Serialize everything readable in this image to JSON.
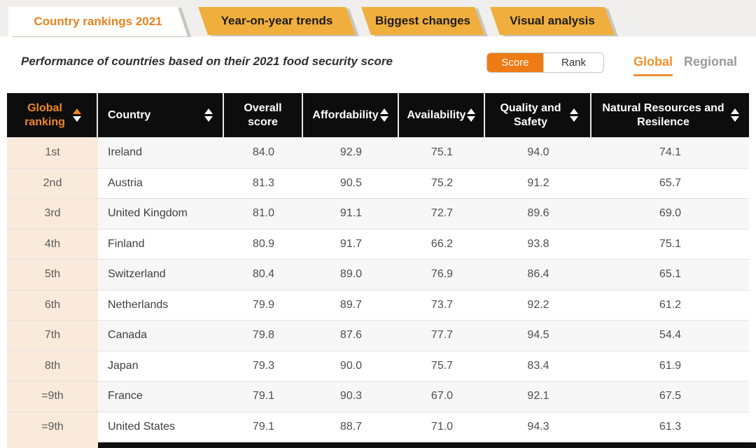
{
  "tabs": [
    {
      "label": "Country rankings 2021",
      "active": true
    },
    {
      "label": "Year-on-year trends",
      "active": false
    },
    {
      "label": "Biggest changes",
      "active": false
    },
    {
      "label": "Visual analysis",
      "active": false
    }
  ],
  "subtitle": "Performance of countries based on their 2021 food security score",
  "view_toggle": {
    "score_label": "Score",
    "rank_label": "Rank",
    "selected": "Score"
  },
  "scope_toggle": {
    "global_label": "Global",
    "regional_label": "Regional",
    "selected": "Global"
  },
  "table": {
    "columns": [
      {
        "label": "Global ranking",
        "sortable": true,
        "sort_state": "asc-active"
      },
      {
        "label": "Country",
        "sortable": true
      },
      {
        "label": "Overall score",
        "sortable": false
      },
      {
        "label": "Affordability",
        "sortable": true
      },
      {
        "label": "Availability",
        "sortable": true
      },
      {
        "label": "Quality and Safety",
        "sortable": true
      },
      {
        "label": "Natural Resources and Resilence",
        "sortable": true
      }
    ],
    "rows": [
      {
        "rank": "1st",
        "country": "Ireland",
        "overall": "84.0",
        "affordability": "92.9",
        "availability": "75.1",
        "quality_safety": "94.0",
        "natural_resources": "74.1"
      },
      {
        "rank": "2nd",
        "country": "Austria",
        "overall": "81.3",
        "affordability": "90.5",
        "availability": "75.2",
        "quality_safety": "91.2",
        "natural_resources": "65.7"
      },
      {
        "rank": "3rd",
        "country": "United Kingdom",
        "overall": "81.0",
        "affordability": "91.1",
        "availability": "72.7",
        "quality_safety": "89.6",
        "natural_resources": "69.0"
      },
      {
        "rank": "4th",
        "country": "Finland",
        "overall": "80.9",
        "affordability": "91.7",
        "availability": "66.2",
        "quality_safety": "93.8",
        "natural_resources": "75.1"
      },
      {
        "rank": "5th",
        "country": "Switzerland",
        "overall": "80.4",
        "affordability": "89.0",
        "availability": "76.9",
        "quality_safety": "86.4",
        "natural_resources": "65.1"
      },
      {
        "rank": "6th",
        "country": "Netherlands",
        "overall": "79.9",
        "affordability": "89.7",
        "availability": "73.7",
        "quality_safety": "92.2",
        "natural_resources": "61.2"
      },
      {
        "rank": "7th",
        "country": "Canada",
        "overall": "79.8",
        "affordability": "87.6",
        "availability": "77.7",
        "quality_safety": "94.5",
        "natural_resources": "54.4"
      },
      {
        "rank": "8th",
        "country": "Japan",
        "overall": "79.3",
        "affordability": "90.0",
        "availability": "75.7",
        "quality_safety": "83.4",
        "natural_resources": "61.9"
      },
      {
        "rank": "=9th",
        "country": "France",
        "overall": "79.1",
        "affordability": "90.3",
        "availability": "67.0",
        "quality_safety": "92.1",
        "natural_resources": "67.5"
      },
      {
        "rank": "=9th",
        "country": "United States",
        "overall": "79.1",
        "affordability": "88.7",
        "availability": "71.0",
        "quality_safety": "94.3",
        "natural_resources": "61.3"
      }
    ]
  },
  "colors": {
    "tab_amber": "#f0ae3d",
    "accent_orange": "#ee7b14",
    "active_tab_text": "#e8821f",
    "header_bg": "#0d0d0d",
    "header_accent_text": "#f08627",
    "rank_column_bg": "#faeadb",
    "scope_active": "#f0922d"
  }
}
